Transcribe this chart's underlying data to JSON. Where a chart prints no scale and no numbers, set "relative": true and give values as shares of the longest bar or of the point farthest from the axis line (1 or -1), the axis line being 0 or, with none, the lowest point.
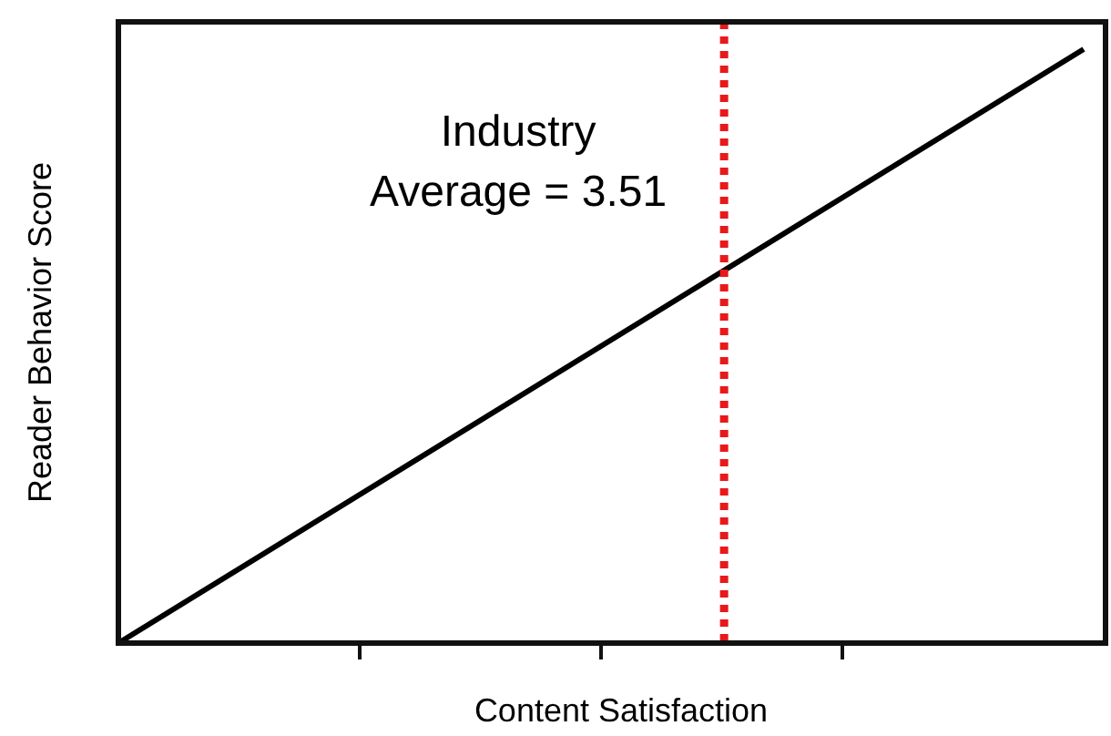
{
  "chart_data": {
    "type": "line",
    "xlabel": "Content Satisfaction",
    "ylabel": "Reader Behavior Score",
    "relative": true,
    "categories": [
      null,
      null,
      null,
      null,
      null
    ],
    "series": [
      {
        "color": "#000000",
        "values": [
          0,
          0.25,
          0.5,
          0.75,
          1
        ]
      }
    ],
    "annotations": [
      "Industry Average = 3.51"
    ],
    "grid": false,
    "marker": "none",
    "line_style": "solid"
  }
}
